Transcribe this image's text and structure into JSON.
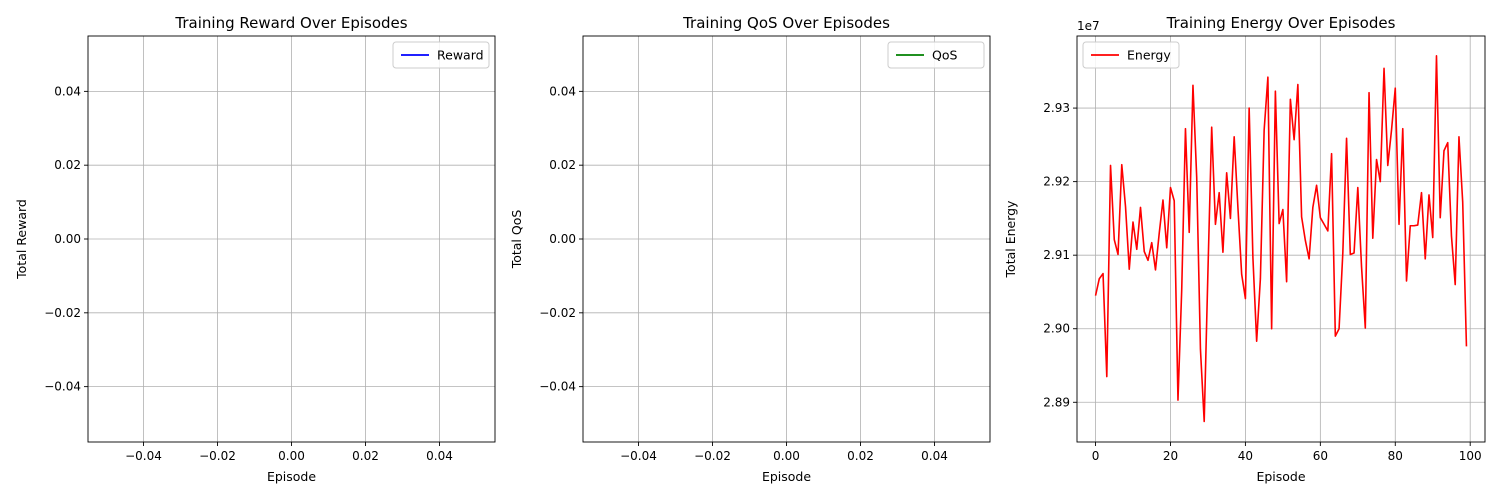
{
  "chart_data": [
    {
      "type": "line",
      "title": "Training Reward Over Episodes",
      "xlabel": "Episode",
      "ylabel": "Total Reward",
      "xlim": [
        -0.055,
        0.055
      ],
      "ylim": [
        -0.055,
        0.055
      ],
      "xticks": [
        -0.04,
        -0.02,
        0.0,
        0.02,
        0.04
      ],
      "xtick_labels": [
        "−0.04",
        "−0.02",
        "0.00",
        "0.02",
        "0.04"
      ],
      "yticks": [
        -0.04,
        -0.02,
        0.0,
        0.02,
        0.04
      ],
      "ytick_labels": [
        "−0.04",
        "−0.02",
        "0.00",
        "0.02",
        "0.04"
      ],
      "grid": true,
      "legend_position": "top-right",
      "series": [
        {
          "name": "Reward",
          "color": "#0000ff",
          "x": [],
          "y": []
        }
      ]
    },
    {
      "type": "line",
      "title": "Training QoS Over Episodes",
      "xlabel": "Episode",
      "ylabel": "Total QoS",
      "xlim": [
        -0.055,
        0.055
      ],
      "ylim": [
        -0.055,
        0.055
      ],
      "xticks": [
        -0.04,
        -0.02,
        0.0,
        0.02,
        0.04
      ],
      "xtick_labels": [
        "−0.04",
        "−0.02",
        "0.00",
        "0.02",
        "0.04"
      ],
      "yticks": [
        -0.04,
        -0.02,
        0.0,
        0.02,
        0.04
      ],
      "ytick_labels": [
        "−0.04",
        "−0.02",
        "0.00",
        "0.02",
        "0.04"
      ],
      "grid": true,
      "legend_position": "top-right",
      "series": [
        {
          "name": "QoS",
          "color": "#008000",
          "x": [],
          "y": []
        }
      ]
    },
    {
      "type": "line",
      "title": "Training Energy Over Episodes",
      "xlabel": "Episode",
      "ylabel": "Total Energy",
      "offset_label": "1e7",
      "y_multiplier": 10000000,
      "xlim": [
        -4.95,
        103.95
      ],
      "ylim": [
        2.8846,
        2.9398
      ],
      "xticks": [
        0,
        20,
        40,
        60,
        80,
        100
      ],
      "xtick_labels": [
        "0",
        "20",
        "40",
        "60",
        "80",
        "100"
      ],
      "yticks": [
        2.89,
        2.9,
        2.91,
        2.92,
        2.93
      ],
      "ytick_labels": [
        "2.89",
        "2.90",
        "2.91",
        "2.92",
        "2.93"
      ],
      "grid": true,
      "legend_position": "top-left",
      "series": [
        {
          "name": "Energy",
          "color": "#ff0000",
          "x": [
            0,
            1,
            2,
            3,
            4,
            5,
            6,
            7,
            8,
            9,
            10,
            11,
            12,
            13,
            14,
            15,
            16,
            17,
            18,
            19,
            20,
            21,
            22,
            23,
            24,
            25,
            26,
            27,
            28,
            29,
            30,
            31,
            32,
            33,
            34,
            35,
            36,
            37,
            38,
            39,
            40,
            41,
            42,
            43,
            44,
            45,
            46,
            47,
            48,
            49,
            50,
            51,
            52,
            53,
            54,
            55,
            56,
            57,
            58,
            59,
            60,
            61,
            62,
            63,
            64,
            65,
            66,
            67,
            68,
            69,
            70,
            71,
            72,
            73,
            74,
            75,
            76,
            77,
            78,
            79,
            80,
            81,
            82,
            83,
            84,
            85,
            86,
            87,
            88,
            89,
            90,
            91,
            92,
            93,
            94,
            95,
            96,
            97,
            98,
            99
          ],
          "y": [
            2.9045,
            2.9068,
            2.9075,
            2.8935,
            2.9222,
            2.9121,
            2.9101,
            2.9223,
            2.9166,
            2.9081,
            2.9145,
            2.9108,
            2.9165,
            2.9105,
            2.9093,
            2.9117,
            2.908,
            2.913,
            2.9175,
            2.911,
            2.9192,
            2.9174,
            2.8903,
            2.9053,
            2.9272,
            2.9131,
            2.9331,
            2.9206,
            2.8972,
            2.8874,
            2.9078,
            2.9274,
            2.9142,
            2.9185,
            2.9104,
            2.9212,
            2.915,
            2.9261,
            2.9165,
            2.9074,
            2.9041,
            2.93,
            2.9097,
            2.8983,
            2.9068,
            2.927,
            2.9342,
            2.9,
            2.9323,
            2.9143,
            2.9162,
            2.9064,
            2.9312,
            2.9257,
            2.9332,
            2.9152,
            2.912,
            2.9095,
            2.9165,
            2.9195,
            2.9151,
            2.9142,
            2.9133,
            2.9238,
            2.899,
            2.9,
            2.9103,
            2.9259,
            2.9101,
            2.9103,
            2.9192,
            2.9084,
            2.9001,
            2.9321,
            2.9123,
            2.923,
            2.92,
            2.9354,
            2.9222,
            2.927,
            2.9327,
            2.9142,
            2.9272,
            2.9065,
            2.914,
            2.914,
            2.9141,
            2.9185,
            2.9095,
            2.9182,
            2.9124,
            2.9371,
            2.9151,
            2.9242,
            2.9253,
            2.9126,
            2.906,
            2.9261,
            2.9172,
            2.8976
          ]
        }
      ]
    }
  ]
}
